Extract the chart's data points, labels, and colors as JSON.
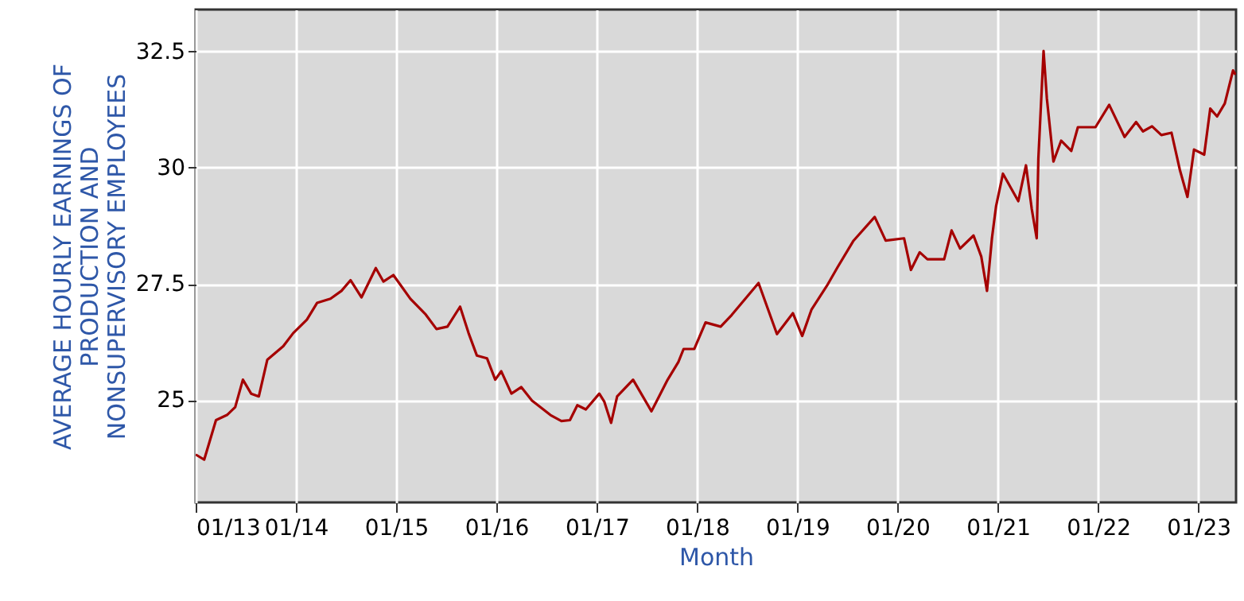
{
  "chart_data": {
    "type": "line",
    "xlabel": "Month",
    "ylabel": "AVERAGE HOURLY EARNINGS OF PRODUCTION AND NONSUPERVISORY EMPLOYEES",
    "xlim": [
      "2013-01-01",
      "2023-05-18"
    ],
    "xticks": [
      {
        "value": "2013-01-01",
        "label": "01/13"
      },
      {
        "value": "2014-01-01",
        "label": "01/14"
      },
      {
        "value": "2015-01-01",
        "label": "01/15"
      },
      {
        "value": "2016-01-01",
        "label": "01/16"
      },
      {
        "value": "2017-01-01",
        "label": "01/17"
      },
      {
        "value": "2018-01-01",
        "label": "01/18"
      },
      {
        "value": "2019-01-01",
        "label": "01/19"
      },
      {
        "value": "2020-01-01",
        "label": "01/20"
      },
      {
        "value": "2021-01-01",
        "label": "01/21"
      },
      {
        "value": "2022-01-01",
        "label": "01/22"
      },
      {
        "value": "2023-01-01",
        "label": "01/23"
      }
    ],
    "ylim": [
      22.8,
      33.4
    ],
    "yticks": [
      25,
      27.5,
      30,
      32.5
    ],
    "grid": true,
    "marker": "none",
    "x": [
      "2013-01-01",
      "2013-02-01",
      "2013-03-16",
      "2013-04-25",
      "2013-05-25",
      "2013-06-22",
      "2013-07-22",
      "2013-08-19",
      "2013-09-19",
      "2013-11-16",
      "2013-12-22",
      "2014-02-10",
      "2014-03-19",
      "2014-05-07",
      "2014-06-16",
      "2014-07-19",
      "2014-08-28",
      "2014-10-19",
      "2014-11-16",
      "2014-12-22",
      "2015-02-22",
      "2015-04-19",
      "2015-05-28",
      "2015-07-07",
      "2015-08-22",
      "2015-09-22",
      "2015-10-22",
      "2015-11-28",
      "2015-12-28",
      "2016-01-19",
      "2016-02-25",
      "2016-04-01",
      "2016-05-10",
      "2016-07-16",
      "2016-08-25",
      "2016-09-25",
      "2016-10-22",
      "2016-11-22",
      "2017-01-10",
      "2017-01-28",
      "2017-02-22",
      "2017-03-16",
      "2017-05-13",
      "2017-07-19",
      "2017-09-16",
      "2017-10-25",
      "2017-11-13",
      "2017-12-22",
      "2018-02-01",
      "2018-03-28",
      "2018-05-07",
      "2018-08-13",
      "2018-10-19",
      "2018-12-16",
      "2019-01-19",
      "2019-02-22",
      "2019-04-19",
      "2019-05-28",
      "2019-07-25",
      "2019-10-10",
      "2019-11-19",
      "2020-01-25",
      "2020-02-19",
      "2020-03-22",
      "2020-04-19",
      "2020-06-19",
      "2020-07-16",
      "2020-08-16",
      "2020-10-04",
      "2020-11-01",
      "2020-11-22",
      "2020-12-10",
      "2020-12-25",
      "2021-01-19",
      "2021-03-16",
      "2021-04-13",
      "2021-05-04",
      "2021-05-22",
      "2021-05-28",
      "2021-06-16",
      "2021-06-28",
      "2021-07-22",
      "2021-08-19",
      "2021-09-25",
      "2021-10-19",
      "2021-12-22",
      "2022-02-10",
      "2022-04-07",
      "2022-05-19",
      "2022-06-13",
      "2022-07-16",
      "2022-08-19",
      "2022-09-25",
      "2022-10-25",
      "2022-11-22",
      "2022-12-16",
      "2023-01-22",
      "2023-02-13",
      "2023-03-10",
      "2023-04-07",
      "2023-05-07",
      "2023-05-16"
    ],
    "series": [
      {
        "color": "#a50000",
        "values": [
          23.83,
          23.72,
          24.57,
          24.68,
          24.85,
          25.44,
          25.14,
          25.08,
          25.87,
          26.16,
          26.44,
          26.73,
          27.09,
          27.18,
          27.35,
          27.58,
          27.21,
          27.84,
          27.55,
          27.69,
          27.18,
          26.84,
          26.53,
          26.58,
          27.01,
          26.44,
          25.96,
          25.9,
          25.44,
          25.62,
          25.14,
          25.28,
          24.99,
          24.68,
          24.55,
          24.57,
          24.89,
          24.8,
          25.14,
          24.97,
          24.51,
          25.08,
          25.44,
          24.76,
          25.44,
          25.82,
          26.1,
          26.1,
          26.67,
          26.58,
          26.83,
          27.52,
          26.42,
          26.87,
          26.38,
          26.95,
          27.46,
          27.86,
          28.43,
          28.94,
          28.43,
          28.48,
          27.8,
          28.18,
          28.03,
          28.03,
          28.65,
          28.26,
          28.54,
          28.09,
          27.35,
          28.48,
          29.17,
          29.87,
          29.28,
          30.05,
          29.11,
          28.48,
          30.19,
          32.51,
          31.49,
          30.13,
          30.58,
          30.36,
          30.87,
          30.87,
          31.35,
          30.66,
          30.98,
          30.78,
          30.89,
          30.7,
          30.75,
          29.96,
          29.37,
          30.39,
          30.28,
          31.27,
          31.1,
          31.38,
          32.09,
          32.0
        ]
      }
    ]
  }
}
